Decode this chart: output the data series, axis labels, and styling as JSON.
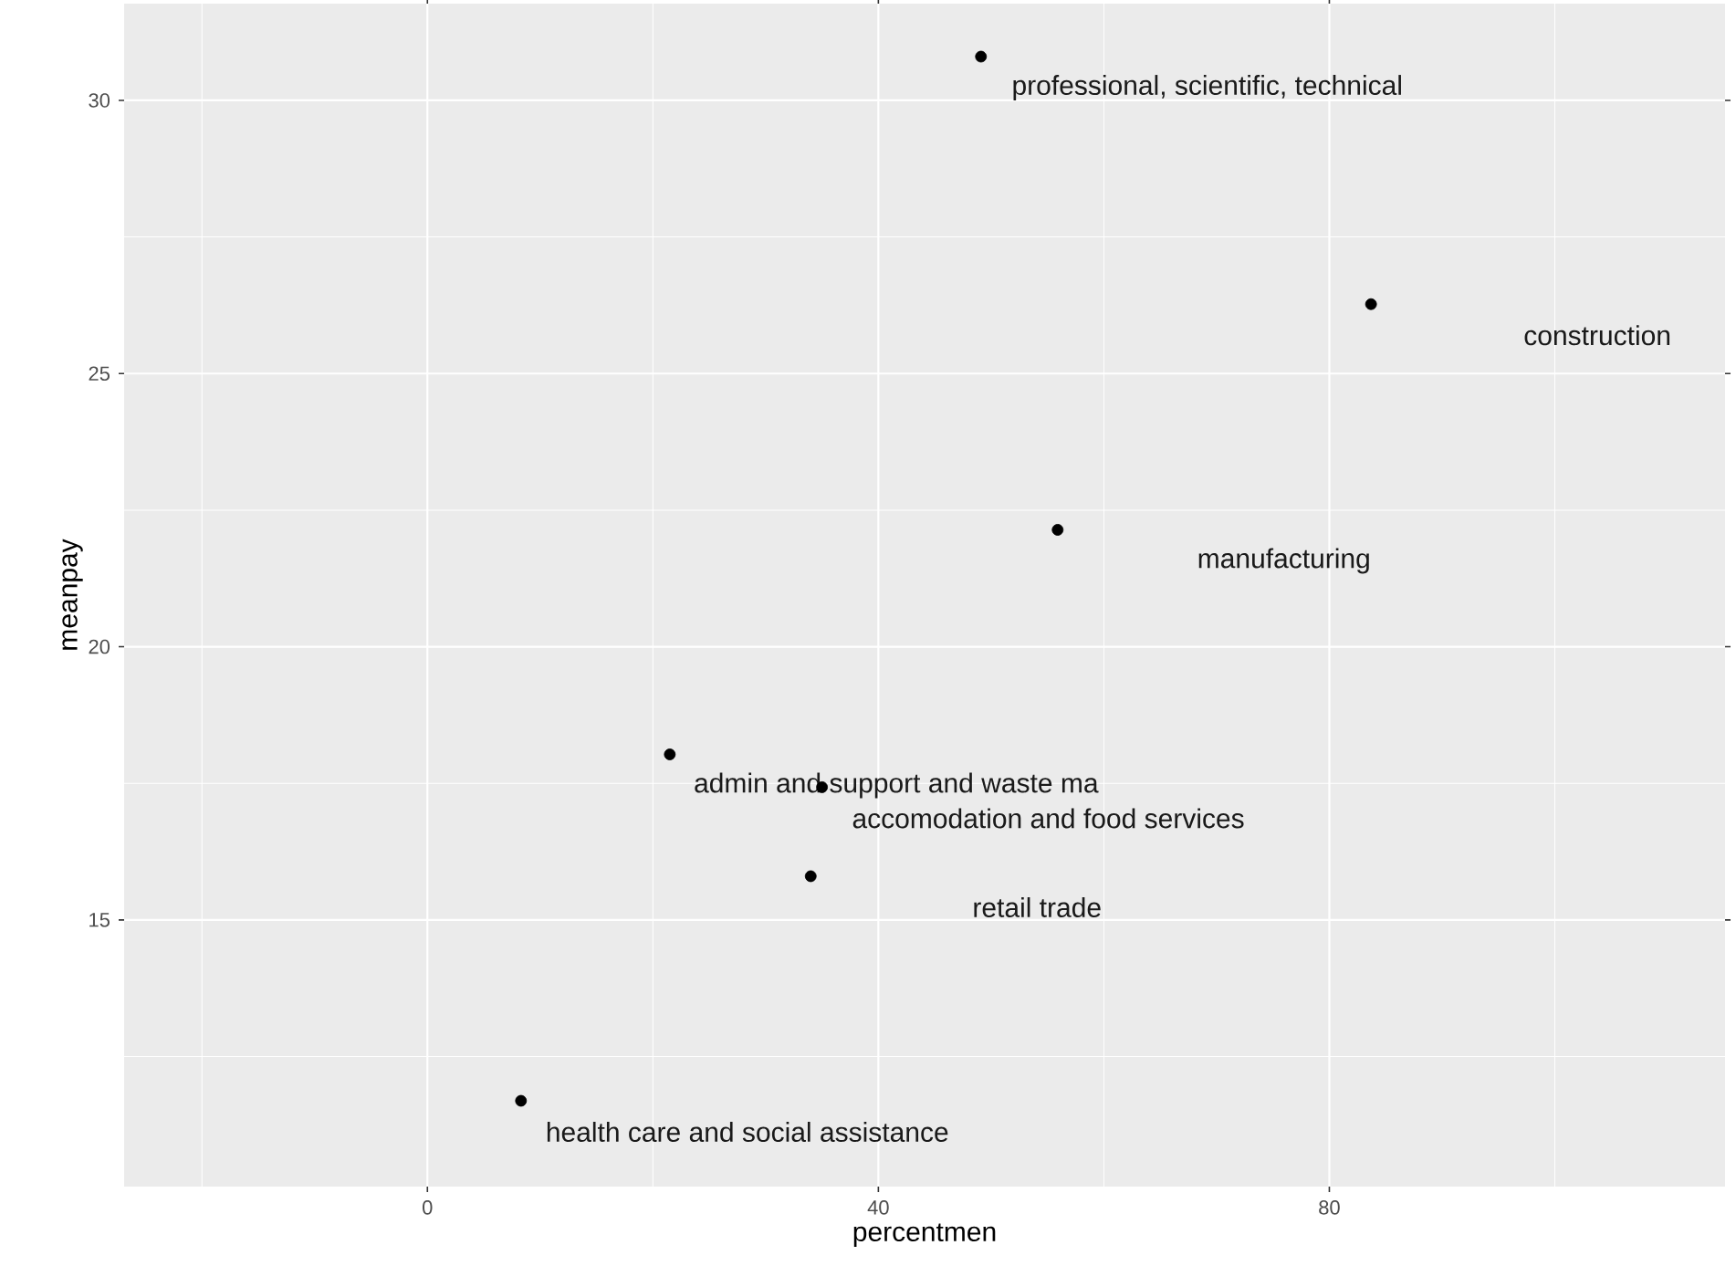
{
  "chart_data": {
    "type": "scatter",
    "xlabel": "percentmen",
    "ylabel": "meanpay",
    "xlim": [
      -26.9,
      115.1
    ],
    "ylim": [
      10.12,
      31.77
    ],
    "xticks": [
      0,
      40,
      80
    ],
    "yticks": [
      15,
      20,
      25,
      30
    ],
    "grid": true,
    "series": [
      {
        "color": "#000000",
        "x": [
          49.1,
          83.7,
          55.9,
          21.5,
          35.0,
          34.0,
          8.3
        ],
        "values": [
          30.8,
          26.27,
          22.14,
          18.03,
          17.43,
          15.8,
          11.69
        ]
      }
    ],
    "annotations": [
      "professional, scientific, technical",
      "construction",
      "manufacturing",
      "admin and support and waste ma",
      "accomodation and food services",
      "retail trade",
      "health care and social assistance"
    ]
  }
}
